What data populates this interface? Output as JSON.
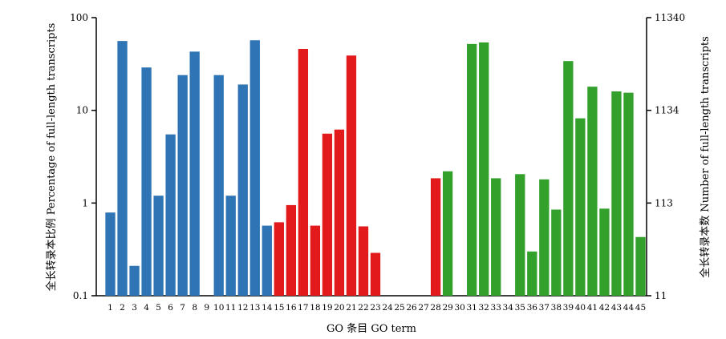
{
  "chart_data": {
    "type": "bar",
    "xlabel": "GO 条目  GO term",
    "ylabel_left": "全长转录本比例   Percentage of full-length transcripts",
    "ylabel_right": "全长转录本数   Number of full-length transcripts",
    "yscale": "log",
    "ylim": [
      0.1,
      100
    ],
    "yticks_left": [
      "0.1",
      "1",
      "10",
      "100"
    ],
    "yticks_right": [
      "11",
      "113",
      "1134",
      "11340"
    ],
    "categories": [
      "1",
      "2",
      "3",
      "4",
      "5",
      "6",
      "7",
      "8",
      "9",
      "10",
      "11",
      "12",
      "13",
      "14",
      "15",
      "16",
      "17",
      "18",
      "19",
      "20",
      "21",
      "22",
      "23",
      "24",
      "25",
      "26",
      "27",
      "28",
      "29",
      "30",
      "31",
      "32",
      "33",
      "34",
      "35",
      "36",
      "37",
      "38",
      "39",
      "40",
      "41",
      "42",
      "43",
      "44",
      "45"
    ],
    "values": [
      0.79,
      56,
      0.21,
      29,
      1.2,
      5.5,
      24,
      43,
      null,
      24,
      1.2,
      19,
      57,
      0.57,
      0.62,
      0.95,
      46,
      0.57,
      5.6,
      6.2,
      39,
      0.56,
      0.29,
      null,
      null,
      null,
      null,
      1.85,
      2.2,
      null,
      52,
      54,
      1.85,
      null,
      2.05,
      0.3,
      1.8,
      0.85,
      34,
      8.2,
      18,
      0.87,
      16,
      15.5,
      0.43
    ],
    "groups": [
      {
        "from": 1,
        "to": 14,
        "color": "#2f75b5"
      },
      {
        "from": 15,
        "to": 27,
        "color": "#e31a1c"
      },
      {
        "from": 28,
        "to": 28,
        "color": "#e31a1c"
      },
      {
        "from": 29,
        "to": 45,
        "color": "#33a02c"
      }
    ]
  }
}
